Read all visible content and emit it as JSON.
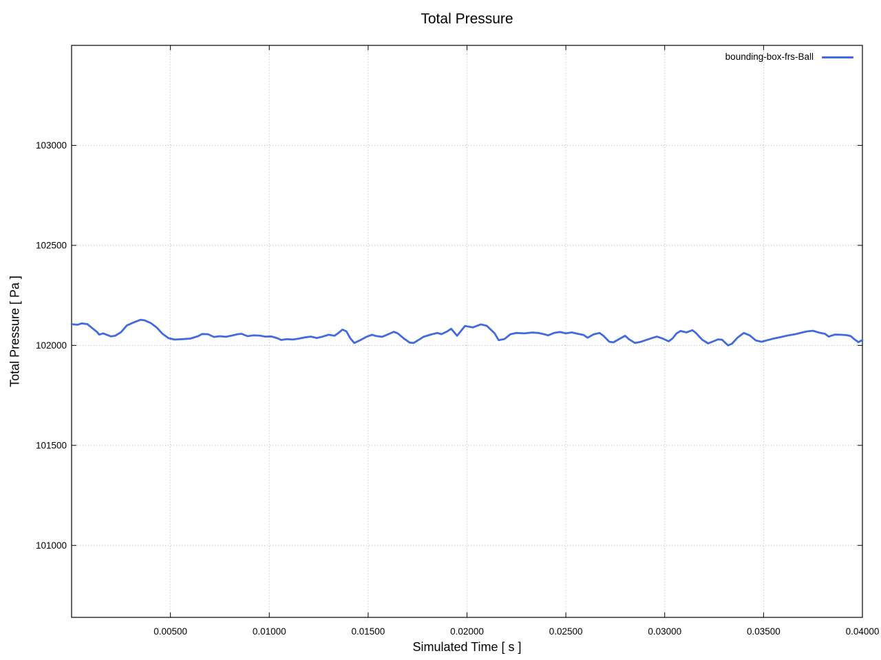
{
  "page": {
    "background": "#ffffff"
  },
  "chart_data": {
    "type": "line",
    "title": "Total Pressure",
    "xlabel": "Simulated Time [ s ]",
    "ylabel": "Total Pressure [ Pa ]",
    "grid": true,
    "legend_position": "top-right-inside",
    "legend": {
      "entries": [
        {
          "label": "bounding-box-frs-Ball",
          "color": "#4169e1"
        }
      ]
    },
    "xlim": [
      0,
      0.04
    ],
    "ylim": [
      100640,
      103500
    ],
    "xticks": [
      {
        "v": 0.005,
        "label": "0.00500"
      },
      {
        "v": 0.01,
        "label": "0.01000"
      },
      {
        "v": 0.015,
        "label": "0.01500"
      },
      {
        "v": 0.02,
        "label": "0.02000"
      },
      {
        "v": 0.025,
        "label": "0.02500"
      },
      {
        "v": 0.03,
        "label": "0.03000"
      },
      {
        "v": 0.035,
        "label": "0.03500"
      },
      {
        "v": 0.04,
        "label": "0.04000"
      }
    ],
    "yticks": [
      {
        "v": 101000,
        "label": "101000"
      },
      {
        "v": 101500,
        "label": "101500"
      },
      {
        "v": 102000,
        "label": "102000"
      },
      {
        "v": 102500,
        "label": "102500"
      },
      {
        "v": 103000,
        "label": "103000"
      }
    ],
    "colors": {
      "line": "#4169e1",
      "grid": "#b4b4b4",
      "axis": "#000000"
    },
    "series": [
      {
        "name": "bounding-box-frs-Ball",
        "color": "#4169e1",
        "points": [
          [
            0.0,
            102106
          ],
          [
            0.0003,
            102103
          ],
          [
            0.0005,
            102110
          ],
          [
            0.0008,
            102106
          ],
          [
            0.001,
            102090
          ],
          [
            0.0013,
            102066
          ],
          [
            0.0014,
            102054
          ],
          [
            0.0016,
            102060
          ],
          [
            0.0018,
            102052
          ],
          [
            0.002,
            102045
          ],
          [
            0.0022,
            102048
          ],
          [
            0.0025,
            102066
          ],
          [
            0.0028,
            102100
          ],
          [
            0.0032,
            102117
          ],
          [
            0.0035,
            102128
          ],
          [
            0.0037,
            102125
          ],
          [
            0.004,
            102112
          ],
          [
            0.0043,
            102090
          ],
          [
            0.0046,
            102058
          ],
          [
            0.0049,
            102036
          ],
          [
            0.0052,
            102029
          ],
          [
            0.0056,
            102031
          ],
          [
            0.006,
            102034
          ],
          [
            0.0064,
            102046
          ],
          [
            0.0066,
            102057
          ],
          [
            0.0069,
            102056
          ],
          [
            0.0072,
            102042
          ],
          [
            0.0075,
            102046
          ],
          [
            0.0078,
            102043
          ],
          [
            0.0081,
            102049
          ],
          [
            0.0084,
            102056
          ],
          [
            0.0086,
            102058
          ],
          [
            0.0089,
            102046
          ],
          [
            0.0092,
            102050
          ],
          [
            0.0095,
            102049
          ],
          [
            0.0098,
            102044
          ],
          [
            0.0101,
            102045
          ],
          [
            0.0104,
            102036
          ],
          [
            0.0106,
            102027
          ],
          [
            0.0109,
            102031
          ],
          [
            0.0112,
            102029
          ],
          [
            0.0115,
            102034
          ],
          [
            0.0118,
            102040
          ],
          [
            0.0121,
            102044
          ],
          [
            0.0124,
            102037
          ],
          [
            0.0127,
            102044
          ],
          [
            0.013,
            102053
          ],
          [
            0.0133,
            102048
          ],
          [
            0.0135,
            102062
          ],
          [
            0.0137,
            102079
          ],
          [
            0.0139,
            102070
          ],
          [
            0.0141,
            102035
          ],
          [
            0.0143,
            102012
          ],
          [
            0.0146,
            102026
          ],
          [
            0.0149,
            102042
          ],
          [
            0.0152,
            102053
          ],
          [
            0.0154,
            102047
          ],
          [
            0.0157,
            102043
          ],
          [
            0.016,
            102055
          ],
          [
            0.0163,
            102068
          ],
          [
            0.0165,
            102060
          ],
          [
            0.0168,
            102035
          ],
          [
            0.0171,
            102014
          ],
          [
            0.0173,
            102012
          ],
          [
            0.0176,
            102030
          ],
          [
            0.0178,
            102043
          ],
          [
            0.0182,
            102055
          ],
          [
            0.0185,
            102062
          ],
          [
            0.0187,
            102056
          ],
          [
            0.019,
            102070
          ],
          [
            0.0192,
            102083
          ],
          [
            0.0195,
            102048
          ],
          [
            0.0199,
            102097
          ],
          [
            0.0203,
            102090
          ],
          [
            0.0207,
            102105
          ],
          [
            0.021,
            102098
          ],
          [
            0.0214,
            102060
          ],
          [
            0.0216,
            102026
          ],
          [
            0.0219,
            102032
          ],
          [
            0.0222,
            102056
          ],
          [
            0.0225,
            102062
          ],
          [
            0.0229,
            102060
          ],
          [
            0.0233,
            102064
          ],
          [
            0.0236,
            102062
          ],
          [
            0.0239,
            102056
          ],
          [
            0.0241,
            102050
          ],
          [
            0.0244,
            102062
          ],
          [
            0.0247,
            102067
          ],
          [
            0.025,
            102060
          ],
          [
            0.0253,
            102065
          ],
          [
            0.0256,
            102058
          ],
          [
            0.0259,
            102052
          ],
          [
            0.0261,
            102038
          ],
          [
            0.0264,
            102055
          ],
          [
            0.0267,
            102062
          ],
          [
            0.0269,
            102048
          ],
          [
            0.0272,
            102018
          ],
          [
            0.0274,
            102015
          ],
          [
            0.0277,
            102032
          ],
          [
            0.028,
            102048
          ],
          [
            0.0282,
            102030
          ],
          [
            0.0285,
            102012
          ],
          [
            0.0288,
            102018
          ],
          [
            0.0291,
            102028
          ],
          [
            0.0294,
            102038
          ],
          [
            0.0296,
            102044
          ],
          [
            0.0299,
            102034
          ],
          [
            0.0302,
            102020
          ],
          [
            0.0304,
            102035
          ],
          [
            0.0306,
            102060
          ],
          [
            0.0308,
            102072
          ],
          [
            0.0311,
            102065
          ],
          [
            0.0314,
            102076
          ],
          [
            0.0316,
            102060
          ],
          [
            0.0319,
            102028
          ],
          [
            0.0322,
            102010
          ],
          [
            0.0325,
            102022
          ],
          [
            0.0327,
            102030
          ],
          [
            0.0329,
            102028
          ],
          [
            0.0332,
            102000
          ],
          [
            0.0334,
            102008
          ],
          [
            0.0337,
            102040
          ],
          [
            0.034,
            102062
          ],
          [
            0.0343,
            102050
          ],
          [
            0.0346,
            102025
          ],
          [
            0.0349,
            102018
          ],
          [
            0.0352,
            102026
          ],
          [
            0.0355,
            102034
          ],
          [
            0.0358,
            102040
          ],
          [
            0.0362,
            102049
          ],
          [
            0.0366,
            102056
          ],
          [
            0.0369,
            102063
          ],
          [
            0.0372,
            102070
          ],
          [
            0.0375,
            102073
          ],
          [
            0.0378,
            102064
          ],
          [
            0.0381,
            102058
          ],
          [
            0.0383,
            102044
          ],
          [
            0.0386,
            102054
          ],
          [
            0.0389,
            102053
          ],
          [
            0.0392,
            102051
          ],
          [
            0.0394,
            102047
          ],
          [
            0.0396,
            102030
          ],
          [
            0.0398,
            102016
          ],
          [
            0.04,
            102027
          ]
        ]
      }
    ]
  }
}
